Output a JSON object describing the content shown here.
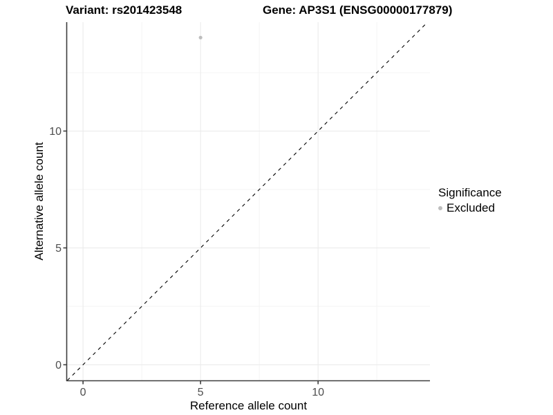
{
  "figure": {
    "title_variant": "Variant: rs201423548",
    "title_gene": "Gene: AP3S1 (ENSG00000177879)",
    "x_label": "Reference allele count",
    "y_label": "Alternative allele count"
  },
  "legend": {
    "title": "Significance",
    "items": [
      {
        "label": "Excluded",
        "color": "#bdbdbd"
      }
    ]
  },
  "chart_data": {
    "type": "scatter",
    "title": "Variant: rs201423548 / Gene: AP3S1 (ENSG00000177879)",
    "xlabel": "Reference allele count",
    "ylabel": "Alternative allele count",
    "series": [
      {
        "name": "Excluded",
        "color": "#bdbdbd",
        "points": [
          {
            "x": 5,
            "y": 14
          }
        ]
      }
    ],
    "reference_line": {
      "kind": "identity",
      "equation": "y = x",
      "style": "dashed",
      "color": "#000000"
    },
    "x_ticks": [
      0,
      5,
      10
    ],
    "y_ticks": [
      0,
      5,
      10
    ],
    "x_minor_ticks": [
      2.5,
      7.5,
      12.5
    ],
    "y_minor_ticks": [
      2.5,
      7.5,
      12.5
    ],
    "xlim": [
      -0.68,
      14.76
    ],
    "ylim": [
      -0.67,
      14.66
    ],
    "grid": true,
    "legend_position": "right"
  },
  "colors": {
    "background": "#ffffff",
    "axis_line": "#3d3d3d",
    "tick_label": "#4d4d4d",
    "grid_major": "#e9e9e9",
    "grid_minor": "#f4f4f4",
    "point": "#bdbdbd",
    "dashed_line": "#000000"
  }
}
